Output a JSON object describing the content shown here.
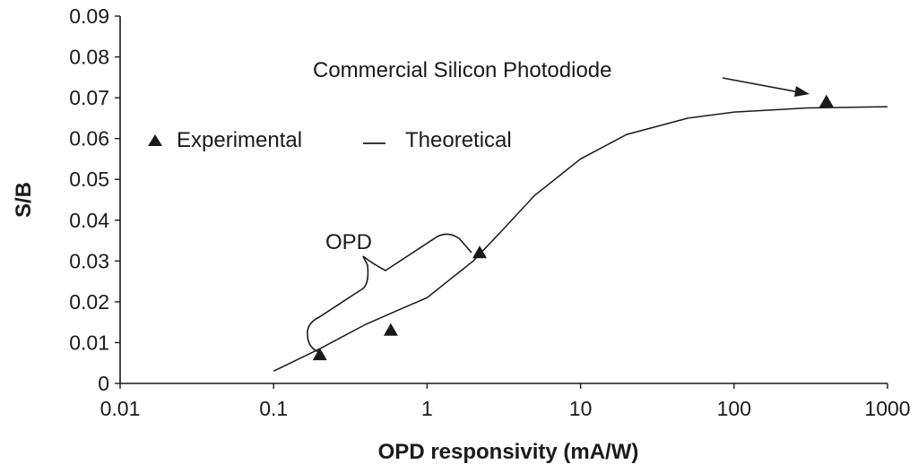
{
  "chart_data": {
    "type": "scatter",
    "title": "",
    "xlabel": "OPD responsivity (mA/W)",
    "ylabel": "S/B",
    "xscale": "log",
    "xlim": [
      0.01,
      1000
    ],
    "ylim": [
      0,
      0.09
    ],
    "x_ticks": [
      "0.01",
      "0.1",
      "1",
      "10",
      "100",
      "1000"
    ],
    "y_ticks": [
      "0",
      "0.01",
      "0.02",
      "0.03",
      "0.04",
      "0.05",
      "0.06",
      "0.07",
      "0.08",
      "0.09"
    ],
    "grid": false,
    "legend": {
      "placement": "upper-left",
      "items": [
        {
          "marker": "triangle",
          "label": "Experimental"
        },
        {
          "marker": "line",
          "label": "Theoretical"
        }
      ]
    },
    "series": [
      {
        "name": "Experimental",
        "kind": "scatter",
        "marker": "triangle",
        "x": [
          0.2,
          0.58,
          2.2,
          400
        ],
        "y": [
          0.007,
          0.013,
          0.032,
          0.069
        ]
      },
      {
        "name": "Theoretical",
        "kind": "line",
        "x": [
          0.1,
          0.2,
          0.4,
          0.7,
          1,
          2,
          3,
          5,
          10,
          20,
          50,
          100,
          300,
          1000
        ],
        "y": [
          0.003,
          0.0085,
          0.0145,
          0.0185,
          0.021,
          0.03,
          0.037,
          0.046,
          0.055,
          0.061,
          0.065,
          0.0665,
          0.0675,
          0.0678
        ]
      }
    ],
    "annotations": [
      {
        "text": "OPD",
        "kind": "brace",
        "covers": "experimental points from 0.1 to 2.2 mA/W"
      },
      {
        "text": "Commercial Silicon Photodiode",
        "kind": "arrow",
        "target_x": 400,
        "target_y": 0.069
      }
    ]
  }
}
